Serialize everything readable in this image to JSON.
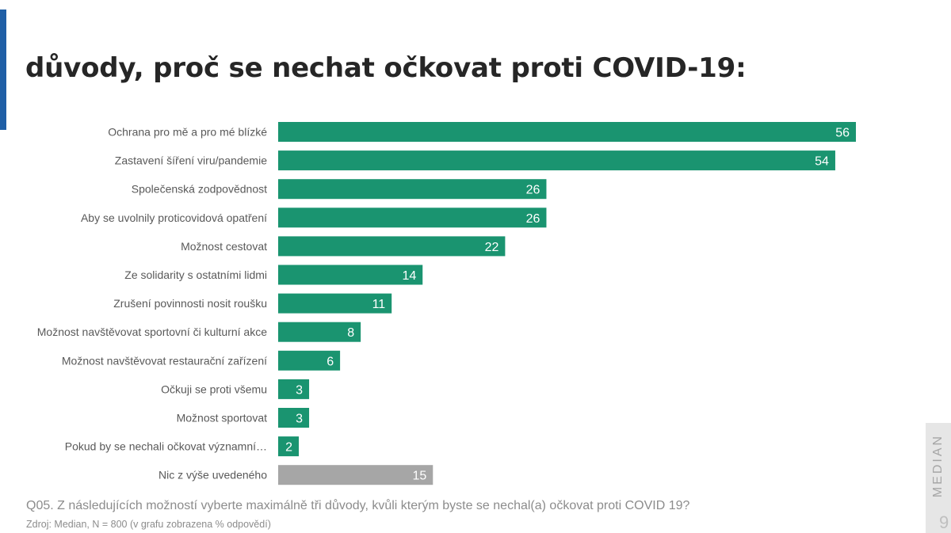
{
  "title": "důvody, proč se nechat očkovat proti COVID-19:",
  "footer": {
    "question": "Q05. Z následujících možností vyberte maximálně tři důvody, kvůli kterým byste se nechal(a) očkovat proti COVID 19?",
    "source": "Zdroj: Median, N = 800 (v grafu zobrazena % odpovědí)"
  },
  "brand": "MEDIAN",
  "page_number": "9",
  "colors": {
    "bar": "#1a9470",
    "bar_neutral": "#a6a6a6",
    "accent": "#1f5fa6"
  },
  "chart_data": {
    "type": "bar",
    "orientation": "horizontal",
    "categories": [
      "Ochrana pro mě a pro mé blízké",
      "Zastavení šíření viru/pandemie",
      "Společenská zodpovědnost",
      "Aby se uvolnily proticovidová opatření",
      "Možnost cestovat",
      "Ze solidarity s ostatními lidmi",
      "Zrušení povinnosti nosit roušku",
      "Možnost navštěvovat sportovní či kulturní akce",
      "Možnost navštěvovat restaurační zařízení",
      "Očkuji se proti všemu",
      "Možnost sportovat",
      "Pokud by se nechali očkovat významní…",
      "Nic z výše uvedeného"
    ],
    "values": [
      56,
      54,
      26,
      26,
      22,
      14,
      11,
      8,
      6,
      3,
      3,
      2,
      15
    ],
    "value_labels": [
      "56",
      "54",
      "26",
      "26",
      "22",
      "14",
      "11",
      "8",
      "6",
      "3",
      "3",
      "2",
      "15"
    ],
    "highlight_last_gray": true,
    "xlim": [
      0,
      56
    ],
    "grid": false,
    "legend": false
  }
}
